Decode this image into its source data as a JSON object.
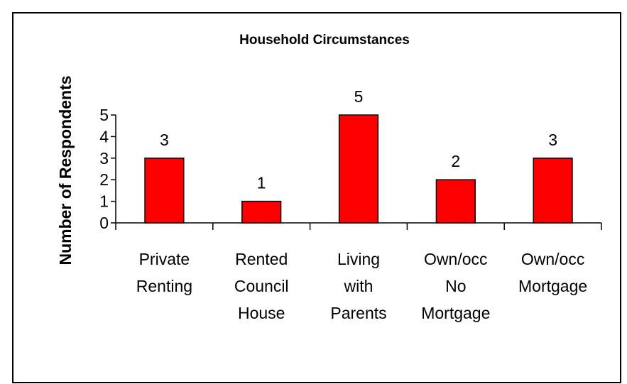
{
  "chart_data": {
    "type": "bar",
    "title": "Household Circumstances",
    "y_label": "Number of Respondents",
    "categories": [
      [
        "Private",
        "Renting"
      ],
      [
        "Rented",
        "Council",
        "House"
      ],
      [
        "Living",
        "with",
        "Parents"
      ],
      [
        "Own/occ",
        "No",
        "Mortgage"
      ],
      [
        "Own/occ",
        "Mortgage"
      ]
    ],
    "values": [
      3,
      1,
      5,
      2,
      3
    ],
    "color": "#ff0000",
    "ylim": [
      0,
      5
    ],
    "yticks": [
      0,
      1,
      2,
      3,
      4,
      5
    ],
    "grid": false
  }
}
